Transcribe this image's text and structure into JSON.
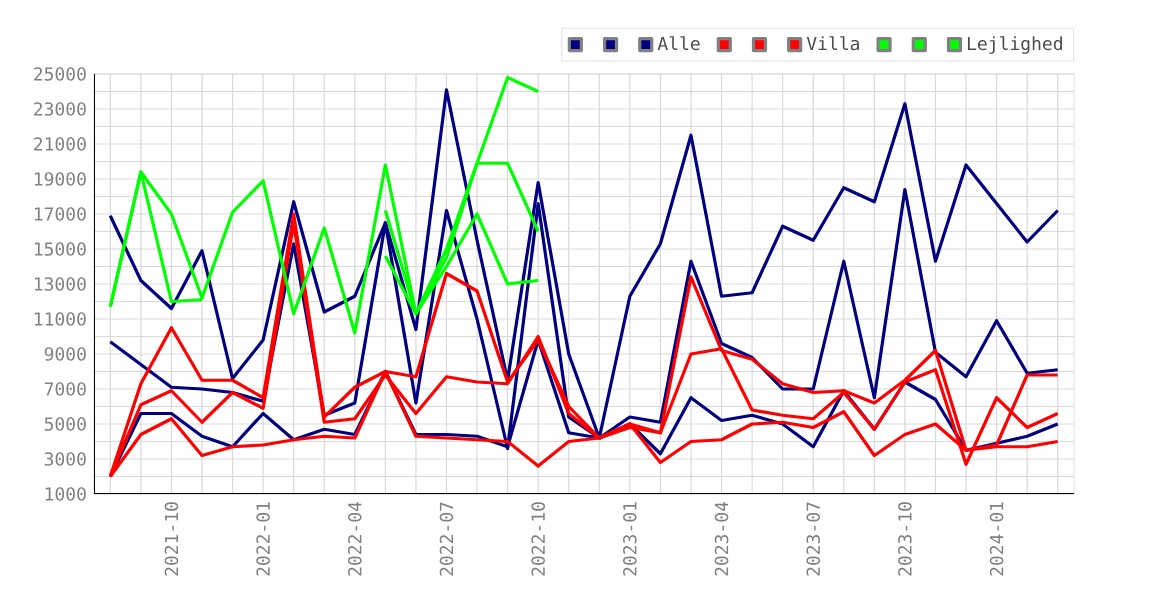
{
  "chart_data": {
    "type": "line",
    "x": [
      "2021-08",
      "2021-09",
      "2021-10",
      "2021-11",
      "2021-12",
      "2022-01",
      "2022-02",
      "2022-03",
      "2022-04",
      "2022-05",
      "2022-06",
      "2022-07",
      "2022-08",
      "2022-09",
      "2022-10",
      "2022-11",
      "2022-12",
      "2023-01",
      "2023-02",
      "2023-03",
      "2023-04",
      "2023-05",
      "2023-06",
      "2023-07",
      "2023-08",
      "2023-09",
      "2023-10",
      "2023-11",
      "2023-12",
      "2024-01",
      "2024-02",
      "2024-03"
    ],
    "series": [
      {
        "color": "#000080",
        "values": [
          16900,
          13200,
          11600,
          14900,
          7600,
          9800,
          17700,
          11400,
          12300,
          16500,
          10400,
          24100,
          15500,
          7500,
          18800,
          9000,
          4200,
          12300,
          15300,
          21500,
          12300,
          12500,
          16300,
          15500,
          18500,
          17700,
          23300,
          14300,
          19800,
          17600,
          15400,
          17200
        ]
      },
      {
        "color": "#000080",
        "values": [
          9700,
          8400,
          7100,
          7000,
          6800,
          6300,
          15300,
          5500,
          6200,
          16500,
          6200,
          17200,
          11000,
          3600,
          17600,
          5400,
          4200,
          5400,
          5100,
          14300,
          9600,
          8800,
          7000,
          7000,
          14300,
          6500,
          18400,
          9100,
          7700,
          10900,
          7900,
          8100
        ]
      },
      {
        "name": "Alle",
        "color": "#000080",
        "values": [
          2000,
          5600,
          5600,
          4300,
          3700,
          5600,
          4100,
          4700,
          4400,
          8000,
          4400,
          4400,
          4300,
          3700,
          9800,
          4500,
          4200,
          5000,
          3300,
          6500,
          5200,
          5500,
          5000,
          3700,
          6900,
          4700,
          7400,
          6400,
          3500,
          3900,
          4300,
          5000
        ]
      },
      {
        "color": "#ff0000",
        "values": [
          2000,
          7300,
          10500,
          7500,
          7500,
          6500,
          17000,
          5400,
          7100,
          8000,
          7700,
          13600,
          12600,
          7400,
          9800,
          6000,
          4200,
          5000,
          4500,
          13400,
          9200,
          8700,
          7300,
          6800,
          6900,
          6200,
          7500,
          9200,
          3500,
          3800,
          7800,
          7800
        ]
      },
      {
        "color": "#ff0000",
        "values": [
          2000,
          6100,
          6900,
          5100,
          6800,
          5900,
          16500,
          5100,
          5300,
          7800,
          5600,
          7700,
          7400,
          7300,
          10000,
          5600,
          4200,
          4800,
          4500,
          9000,
          9300,
          5800,
          5500,
          5300,
          6800,
          4700,
          7400,
          8100,
          2700,
          6500,
          4800,
          5600
        ]
      },
      {
        "name": "Villa",
        "color": "#ff0000",
        "values": [
          2000,
          4400,
          5300,
          3200,
          3700,
          3800,
          4100,
          4300,
          4200,
          8000,
          4300,
          4200,
          4100,
          4000,
          2600,
          4000,
          4200,
          5000,
          2800,
          4000,
          4100,
          5000,
          5100,
          4800,
          5700,
          3200,
          4400,
          5000,
          3500,
          3700,
          3700,
          4000
        ]
      },
      {
        "color": "#00ff00",
        "values": [
          11700,
          19400,
          17000,
          12200,
          17100,
          18900,
          11300,
          16200,
          10200,
          19800,
          11300,
          15000,
          19900,
          19900,
          16000,
          null,
          null,
          null,
          null,
          null,
          null,
          null,
          null,
          null,
          null,
          null,
          null,
          null,
          null,
          null,
          null,
          null
        ]
      },
      {
        "color": "#00ff00",
        "values": [
          11700,
          19400,
          12000,
          12100,
          null,
          null,
          null,
          null,
          null,
          17200,
          11300,
          14500,
          19900,
          24800,
          24000,
          null,
          null,
          null,
          null,
          null,
          null,
          null,
          null,
          null,
          null,
          null,
          null,
          null,
          null,
          null,
          null,
          null
        ]
      },
      {
        "name": "Lejlighed",
        "color": "#00ff00",
        "values": [
          null,
          null,
          null,
          null,
          null,
          null,
          null,
          null,
          null,
          14600,
          11300,
          14000,
          17000,
          13000,
          13200,
          null,
          null,
          null,
          null,
          null,
          null,
          null,
          null,
          null,
          null,
          null,
          null,
          null,
          null,
          null,
          null,
          null
        ]
      }
    ],
    "xlim": [
      "2021-07-15",
      "2024-03-17"
    ],
    "xticks": [
      {
        "value": "2021-08",
        "label": null
      },
      {
        "value": "2021-09",
        "label": null
      },
      "2021-10",
      {
        "value": "2021-11",
        "label": null
      },
      {
        "value": "2021-12",
        "label": null
      },
      "2022-01",
      {
        "value": "2022-02",
        "label": null
      },
      {
        "value": "2022-03",
        "label": null
      },
      "2022-04",
      {
        "value": "2022-05",
        "label": null
      },
      {
        "value": "2022-06",
        "label": null
      },
      "2022-07",
      {
        "value": "2022-08",
        "label": null
      },
      {
        "value": "2022-09",
        "label": null
      },
      "2022-10",
      {
        "value": "2022-11",
        "label": null
      },
      {
        "value": "2022-12",
        "label": null
      },
      "2023-01",
      {
        "value": "2023-02",
        "label": null
      },
      {
        "value": "2023-03",
        "label": null
      },
      "2023-04",
      {
        "value": "2023-05",
        "label": null
      },
      {
        "value": "2023-06",
        "label": null
      },
      "2023-07",
      {
        "value": "2023-08",
        "label": null
      },
      {
        "value": "2023-09",
        "label": null
      },
      "2023-10",
      {
        "value": "2023-11",
        "label": null
      },
      {
        "value": "2023-12",
        "label": null
      },
      "2024-01",
      {
        "value": "2024-02",
        "label": null
      },
      {
        "value": "2024-03",
        "label": null
      }
    ],
    "ylim": [
      1000,
      25000
    ],
    "yticks": [
      1000,
      {
        "value": 2000,
        "label": null
      },
      3000,
      {
        "value": 4000,
        "label": null
      },
      5000,
      {
        "value": 6000,
        "label": null
      },
      7000,
      {
        "value": 8000,
        "label": null
      },
      9000,
      {
        "value": 10000,
        "label": null
      },
      11000,
      {
        "value": 12000,
        "label": null
      },
      13000,
      {
        "value": 14000,
        "label": null
      },
      15000,
      {
        "value": 16000,
        "label": null
      },
      17000,
      {
        "value": 18000,
        "label": null
      },
      19000,
      {
        "value": 20000,
        "label": null
      },
      21000,
      {
        "value": 22000,
        "label": null
      },
      23000,
      {
        "value": 24000,
        "label": null
      },
      25000
    ],
    "grid": true,
    "legend": "top right",
    "line_style": "solid"
  }
}
